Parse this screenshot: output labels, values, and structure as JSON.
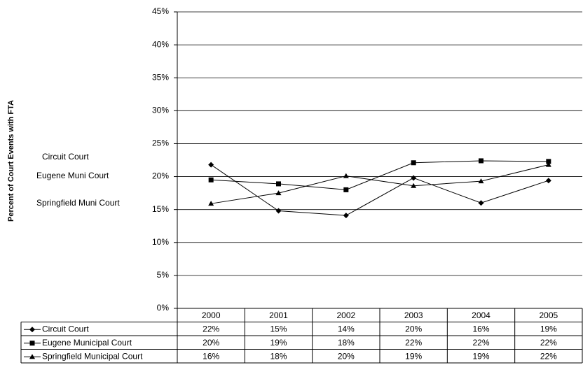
{
  "chart_data": {
    "type": "line",
    "y_label": "Percent of Court Events with FTA",
    "categories": [
      "2000",
      "2001",
      "2002",
      "2003",
      "2004",
      "2005"
    ],
    "series": [
      {
        "name": "Circuit Court",
        "color": "#000000",
        "marker": "diamond",
        "values": [
          21.8,
          14.8,
          14.1,
          19.8,
          16.0,
          19.4
        ],
        "value_labels": [
          "22%",
          "15%",
          "14%",
          "20%",
          "16%",
          "19%"
        ]
      },
      {
        "name": "Eugene Municipal Court",
        "color": "#000000",
        "marker": "square",
        "values": [
          19.5,
          18.9,
          18.0,
          22.1,
          22.4,
          22.3
        ],
        "value_labels": [
          "20%",
          "19%",
          "18%",
          "22%",
          "22%",
          "22%"
        ]
      },
      {
        "name": "Springfield Municipal Court",
        "color": "#000000",
        "marker": "triangle",
        "values": [
          15.9,
          17.5,
          20.1,
          18.6,
          19.3,
          21.8
        ],
        "value_labels": [
          "16%",
          "18%",
          "20%",
          "19%",
          "19%",
          "22%"
        ]
      }
    ],
    "annotations": [
      "Circuit Court",
      "Eugene Muni Court",
      "Springfield Muni  Court"
    ],
    "ylim": [
      0,
      45
    ],
    "yticks": [
      {
        "value": 0,
        "label": "0%"
      },
      {
        "value": 5,
        "label": "5%"
      },
      {
        "value": 10,
        "label": "10%"
      },
      {
        "value": 15,
        "label": "15%"
      },
      {
        "value": 20,
        "label": "20%"
      },
      {
        "value": 25,
        "label": "25%"
      },
      {
        "value": 30,
        "label": "30%"
      },
      {
        "value": 35,
        "label": "35%"
      },
      {
        "value": 40,
        "label": "40%"
      },
      {
        "value": 45,
        "label": "45%"
      }
    ],
    "grid": true
  }
}
